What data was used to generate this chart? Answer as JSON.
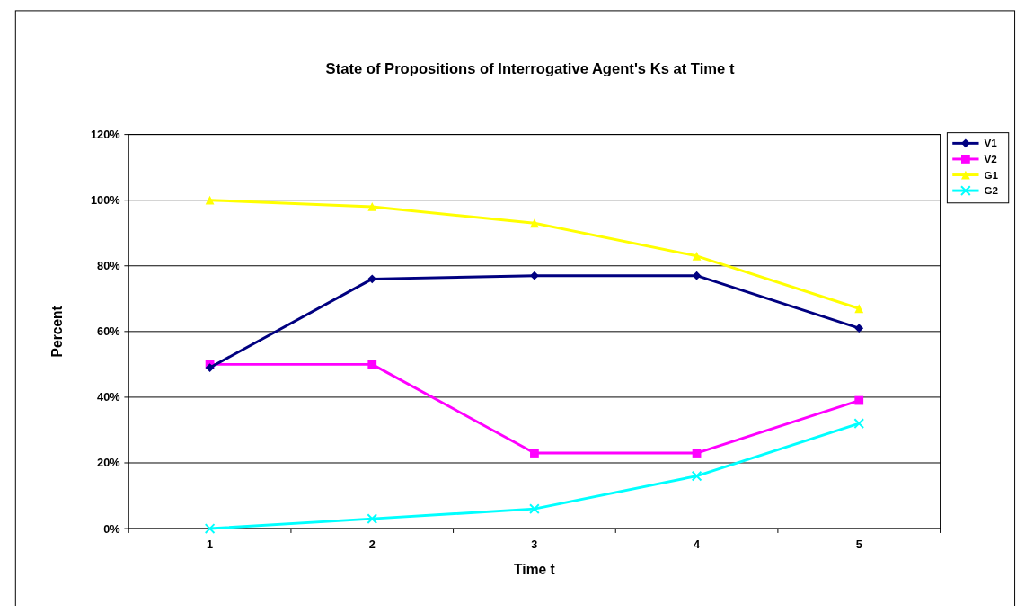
{
  "chart_data": {
    "type": "line",
    "title": "State of Propositions of Interrogative Agent's Ks at Time t",
    "xlabel": "Time t",
    "ylabel": "Percent",
    "categories": [
      "1",
      "2",
      "3",
      "4",
      "5"
    ],
    "series": [
      {
        "name": "V1",
        "color": "#000080",
        "marker": "diamond",
        "values": [
          49,
          76,
          77,
          77,
          61
        ]
      },
      {
        "name": "V2",
        "color": "#ff00ff",
        "marker": "square",
        "values": [
          50,
          50,
          23,
          23,
          39
        ]
      },
      {
        "name": "G1",
        "color": "#ffff00",
        "marker": "triangle",
        "values": [
          100,
          98,
          93,
          83,
          67
        ]
      },
      {
        "name": "G2",
        "color": "#00ffff",
        "marker": "cross",
        "values": [
          0,
          3,
          6,
          16,
          32
        ]
      }
    ],
    "ylim": [
      0,
      120
    ],
    "yticks": [
      {
        "value": 0,
        "label": "0%"
      },
      {
        "value": 20,
        "label": "20%"
      },
      {
        "value": 40,
        "label": "40%"
      },
      {
        "value": 60,
        "label": "60%"
      },
      {
        "value": 80,
        "label": "80%"
      },
      {
        "value": 100,
        "label": "100%"
      },
      {
        "value": 120,
        "label": "120%"
      }
    ],
    "grid": "y",
    "legend": "top right",
    "line_style": "solid"
  }
}
